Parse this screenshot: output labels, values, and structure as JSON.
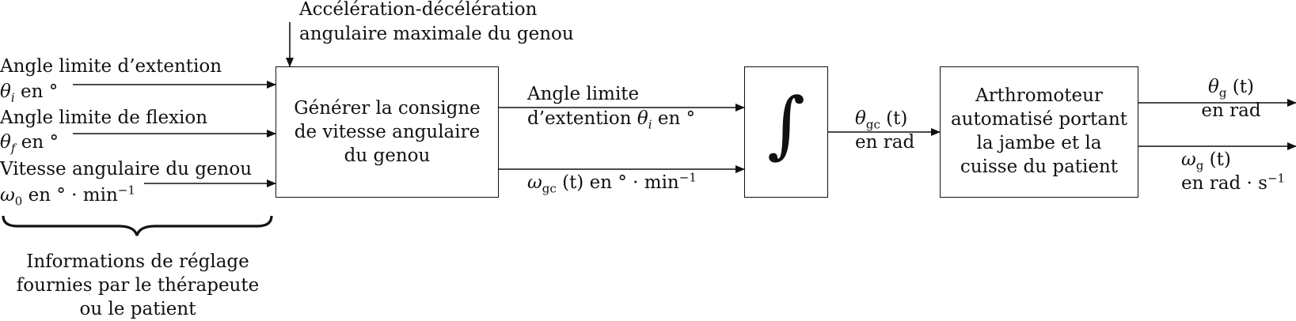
{
  "inputs": {
    "angle_ext_label": "Angle limite d’extention",
    "angle_ext_sym": "θ",
    "angle_ext_sub": "i",
    "angle_ext_unit": " en °",
    "angle_flex_label": "Angle limite de flexion",
    "angle_flex_sym": "θ",
    "angle_flex_sub": "f",
    "angle_flex_unit": " en °",
    "speed_label": "Vitesse angulaire du genou",
    "speed_sym": "ω",
    "speed_sub": "0",
    "speed_unit": " en ° · min",
    "speed_exp": "−1",
    "brace_caption_1": "Informations de réglage",
    "brace_caption_2": "fournies par le thérapeute",
    "brace_caption_3": "ou le patient"
  },
  "accel": {
    "line1": "Accélération-décélération",
    "line2": "angulaire maximale du genou"
  },
  "block_generate": {
    "line1": "Générer la consigne",
    "line2": "de vitesse angulaire",
    "line3": "du genou"
  },
  "mid_signals": {
    "top_line1": "Angle limite",
    "top_line2_text": "d’extention ",
    "top_sym": "θ",
    "top_sub": "i",
    "top_unit": " en °",
    "bottom_sym": "ω",
    "bottom_sub": "gc",
    "bottom_arg": " (t)",
    "bottom_unit": " en ° · min",
    "bottom_exp": "−1"
  },
  "block_integral": {
    "symbol": "∫"
  },
  "theta_gc": {
    "sym": "θ",
    "sub": "gc",
    "arg": " (t)",
    "unit": "en rad"
  },
  "block_arthro": {
    "line1": "Arthromoteur",
    "line2": "automatisé portant",
    "line3": "la jambe et la",
    "line4": "cuisse du patient"
  },
  "outputs": {
    "theta_sym": "θ",
    "theta_sub": "g",
    "theta_arg": " (t)",
    "theta_unit": "en rad",
    "omega_sym": "ω",
    "omega_sub": "g",
    "omega_arg": " (t)",
    "omega_unit": "en rad · s",
    "omega_exp": "−1"
  }
}
